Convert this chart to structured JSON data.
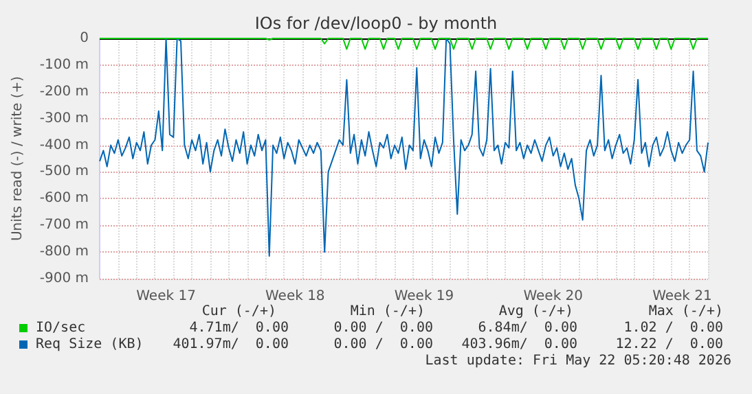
{
  "chart_data": {
    "type": "line",
    "title": "IOs for /dev/loop0 - by month",
    "ylabel": "Units read (-) / write (+)",
    "categories": [
      null,
      null,
      null,
      null,
      null,
      null,
      null,
      null,
      null,
      null,
      null,
      null,
      null,
      null,
      null,
      null,
      null,
      null,
      "Week 17",
      null,
      null,
      null,
      null,
      null,
      null,
      null,
      null,
      null,
      null,
      null,
      null,
      null,
      null,
      null,
      null,
      null,
      null,
      null,
      null,
      null,
      null,
      null,
      null,
      null,
      null,
      null,
      null,
      null,
      null,
      null,
      null,
      null,
      null,
      "Week 18",
      null,
      null,
      null,
      null,
      null,
      null,
      null,
      null,
      null,
      null,
      null,
      null,
      null,
      null,
      null,
      null,
      null,
      null,
      null,
      null,
      null,
      null,
      null,
      null,
      null,
      null,
      null,
      null,
      null,
      null,
      null,
      null,
      null,
      null,
      "Week 19",
      null,
      null,
      null,
      null,
      null,
      null,
      null,
      null,
      null,
      null,
      null,
      null,
      null,
      null,
      null,
      null,
      null,
      null,
      null,
      null,
      null,
      null,
      null,
      null,
      null,
      null,
      null,
      null,
      null,
      null,
      null,
      null,
      null,
      null,
      "Week 20",
      null,
      null,
      null,
      null,
      null,
      null,
      null,
      null,
      null,
      null,
      null,
      null,
      null,
      null,
      null,
      null,
      null,
      null,
      null,
      null,
      null,
      null,
      null,
      null,
      null,
      null,
      null,
      null,
      null,
      null,
      null,
      null,
      null,
      null,
      "Week 21",
      null,
      null,
      null,
      null,
      null,
      null,
      null
    ],
    "ylim": [
      -900,
      0
    ],
    "yticks": [
      {
        "value": -900,
        "label": "-900 m"
      },
      {
        "value": -800,
        "label": "-800 m"
      },
      {
        "value": -700,
        "label": "-700 m"
      },
      {
        "value": -600,
        "label": "-600 m"
      },
      {
        "value": -500,
        "label": "-500 m"
      },
      {
        "value": -400,
        "label": "-400 m"
      },
      {
        "value": -300,
        "label": "-300 m"
      },
      {
        "value": -200,
        "label": "-200 m"
      },
      {
        "value": -100,
        "label": "-100 m"
      },
      0
    ],
    "grid": true,
    "legend": "bottom",
    "marker": "none",
    "line_style": "solid",
    "ref_lines": [
      {
        "axis": "y",
        "value": 0,
        "color": "#000000"
      }
    ],
    "series": [
      {
        "name": "IO/sec",
        "color": "#00cc00",
        "values": [
          0,
          0,
          0,
          0,
          0,
          0,
          0,
          0,
          0,
          0,
          0,
          0,
          0,
          0,
          0,
          0,
          0,
          0,
          0,
          0,
          0,
          0,
          0,
          0,
          0,
          0,
          0,
          0,
          0,
          0,
          0,
          0,
          0,
          0,
          0,
          0,
          0,
          0,
          0,
          0,
          0,
          0,
          0,
          0,
          0,
          0,
          -5,
          0,
          0,
          0,
          0,
          0,
          0,
          0,
          0,
          0,
          0,
          0,
          0,
          0,
          0,
          -20,
          0,
          0,
          0,
          0,
          0,
          -40,
          0,
          0,
          0,
          0,
          -40,
          0,
          0,
          0,
          0,
          -40,
          0,
          0,
          0,
          -40,
          0,
          0,
          0,
          0,
          -40,
          0,
          0,
          0,
          0,
          -40,
          0,
          0,
          0,
          0,
          -40,
          0,
          0,
          0,
          0,
          -40,
          0,
          0,
          0,
          0,
          -40,
          0,
          0,
          0,
          0,
          -40,
          0,
          0,
          0,
          0,
          -40,
          0,
          0,
          0,
          0,
          -40,
          0,
          0,
          0,
          0,
          -40,
          0,
          0,
          0,
          0,
          -40,
          0,
          0,
          0,
          0,
          -40,
          0,
          0,
          0,
          0,
          -40,
          0,
          0,
          0,
          0,
          -40,
          0,
          0,
          0,
          0,
          -40,
          0,
          0,
          0,
          -40,
          0,
          0,
          0,
          0,
          0,
          -40,
          0,
          0,
          0,
          0
        ]
      },
      {
        "name": "Req Size (KB)",
        "color": "#0066b3",
        "values": [
          -460,
          -420,
          -480,
          -400,
          -430,
          -380,
          -440,
          -410,
          -370,
          -450,
          -390,
          -420,
          -350,
          -470,
          -400,
          -380,
          -272,
          -420,
          0,
          -360,
          -370,
          0,
          -10,
          -400,
          -450,
          -380,
          -420,
          -360,
          -470,
          -390,
          -500,
          -420,
          -380,
          -440,
          -340,
          -410,
          -460,
          -380,
          -430,
          -350,
          -470,
          -400,
          -440,
          -360,
          -420,
          -380,
          -815,
          -400,
          -430,
          -370,
          -450,
          -390,
          -420,
          -470,
          -380,
          -410,
          -440,
          -400,
          -430,
          -390,
          -420,
          -800,
          -500,
          -460,
          -420,
          -380,
          -400,
          -155,
          -430,
          -360,
          -470,
          -380,
          -440,
          -350,
          -420,
          -480,
          -390,
          -410,
          -360,
          -450,
          -400,
          -430,
          -370,
          -490,
          -400,
          -420,
          -110,
          -450,
          -380,
          -420,
          -480,
          -370,
          -430,
          -390,
          0,
          -20,
          -380,
          -658,
          -380,
          -420,
          -400,
          -360,
          -123,
          -410,
          -440,
          -380,
          -113,
          -420,
          -400,
          -470,
          -390,
          -410,
          -123,
          -420,
          -390,
          -450,
          -400,
          -430,
          -380,
          -420,
          -460,
          -400,
          -370,
          -440,
          -410,
          -480,
          -430,
          -490,
          -450,
          -550,
          -600,
          -680,
          -420,
          -380,
          -440,
          -400,
          -139,
          -420,
          -380,
          -450,
          -400,
          -360,
          -430,
          -410,
          -470,
          -380,
          -154,
          -430,
          -390,
          -480,
          -400,
          -370,
          -440,
          -410,
          -350,
          -420,
          -460,
          -390,
          -430,
          -400,
          -380,
          -123,
          -420,
          -440,
          -500,
          -390
        ]
      }
    ],
    "annotations": [
      "Cur (-/+)",
      "Min (-/+)",
      "Avg (-/+)",
      "Max (-/+)",
      "4.71m/  0.00",
      "0.00 /  0.00",
      "6.84m/  0.00",
      "1.02 /  0.00",
      "401.97m/  0.00",
      "0.00 /  0.00",
      "403.96m/  0.00",
      "12.22 /  0.00",
      "Last update: Fri May 22 05:20:48 2026"
    ]
  }
}
